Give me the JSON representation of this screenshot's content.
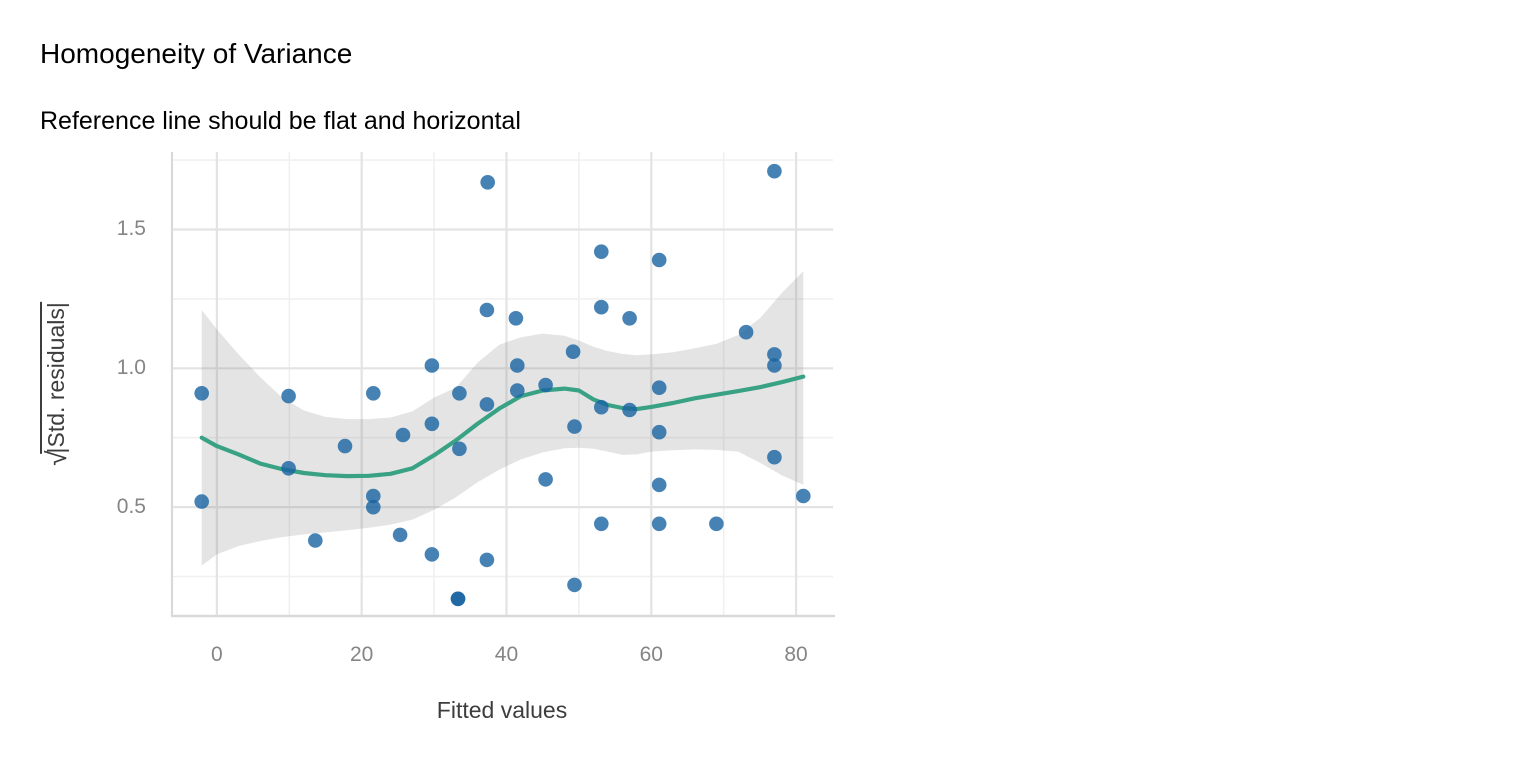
{
  "chart_data": {
    "type": "scatter",
    "title": "Homogeneity of Variance",
    "subtitle": "Reference line should be flat and horizontal",
    "xlabel": "Fitted values",
    "ylabel": "sqrt(|Std. residuals|)",
    "ylabel_sqrt": "√",
    "ylabel_inner": "|Std. residuals|",
    "xlim": [
      -6.2,
      85.1
    ],
    "ylim": [
      0.108,
      1.779
    ],
    "grid": true,
    "legend": false,
    "x_ticks": [
      {
        "v": 0,
        "label": "0"
      },
      {
        "v": 20,
        "label": "20"
      },
      {
        "v": 40,
        "label": "40"
      },
      {
        "v": 60,
        "label": "60"
      },
      {
        "v": 80,
        "label": "80"
      }
    ],
    "x_minor_ticks": [
      10,
      30,
      50,
      70
    ],
    "y_ticks": [
      {
        "v": 0.5,
        "label": "0.5"
      },
      {
        "v": 1.0,
        "label": "1.0"
      },
      {
        "v": 1.5,
        "label": "1.5"
      }
    ],
    "y_minor_ticks": [
      0.25,
      0.75,
      1.25,
      1.75
    ],
    "points": [
      [
        -2.1,
        0.91
      ],
      [
        -2.1,
        0.52
      ],
      [
        9.9,
        0.9
      ],
      [
        9.9,
        0.64
      ],
      [
        13.6,
        0.38
      ],
      [
        17.7,
        0.72
      ],
      [
        21.6,
        0.91
      ],
      [
        21.6,
        0.54
      ],
      [
        21.6,
        0.5
      ],
      [
        25.7,
        0.76
      ],
      [
        25.3,
        0.4
      ],
      [
        29.7,
        1.01
      ],
      [
        29.7,
        0.8
      ],
      [
        29.7,
        0.33
      ],
      [
        33.5,
        0.91
      ],
      [
        33.5,
        0.71
      ],
      [
        37.4,
        1.67
      ],
      [
        37.3,
        1.21
      ],
      [
        37.3,
        0.87
      ],
      [
        37.3,
        0.31
      ],
      [
        41.3,
        1.18
      ],
      [
        41.5,
        1.01
      ],
      [
        41.5,
        0.92
      ],
      [
        45.4,
        0.94
      ],
      [
        45.4,
        0.6
      ],
      [
        49.2,
        1.06
      ],
      [
        49.4,
        0.79
      ],
      [
        49.4,
        0.22
      ],
      [
        53.1,
        1.42
      ],
      [
        53.1,
        1.22
      ],
      [
        53.1,
        0.86
      ],
      [
        53.1,
        0.44
      ],
      [
        57.0,
        1.18
      ],
      [
        57.0,
        0.85
      ],
      [
        61.1,
        1.39
      ],
      [
        61.1,
        0.93
      ],
      [
        61.1,
        0.77
      ],
      [
        61.1,
        0.58
      ],
      [
        61.1,
        0.44
      ],
      [
        69.0,
        0.44
      ],
      [
        73.1,
        1.13
      ],
      [
        77.0,
        1.71
      ],
      [
        77.0,
        1.05
      ],
      [
        77.0,
        1.01
      ],
      [
        77.0,
        0.68
      ],
      [
        81.0,
        0.54
      ]
    ],
    "overplotted_point": {
      "x": 33.3,
      "y": 0.17,
      "count": 2
    },
    "smooth_line": [
      [
        -2.1,
        0.75
      ],
      [
        0,
        0.72
      ],
      [
        3,
        0.69
      ],
      [
        6,
        0.657
      ],
      [
        9,
        0.637
      ],
      [
        12,
        0.623
      ],
      [
        15,
        0.615
      ],
      [
        18,
        0.612
      ],
      [
        21,
        0.613
      ],
      [
        24,
        0.62
      ],
      [
        27,
        0.64
      ],
      [
        30,
        0.687
      ],
      [
        33,
        0.74
      ],
      [
        36,
        0.8
      ],
      [
        39,
        0.855
      ],
      [
        42,
        0.9
      ],
      [
        45,
        0.92
      ],
      [
        48,
        0.927
      ],
      [
        50,
        0.92
      ],
      [
        52,
        0.888
      ],
      [
        54,
        0.868
      ],
      [
        56,
        0.857
      ],
      [
        58,
        0.853
      ],
      [
        60,
        0.861
      ],
      [
        63,
        0.875
      ],
      [
        66,
        0.892
      ],
      [
        69,
        0.905
      ],
      [
        72,
        0.918
      ],
      [
        75,
        0.932
      ],
      [
        78,
        0.95
      ],
      [
        81,
        0.97
      ]
    ],
    "ribbon_upper": [
      [
        -2.1,
        1.21
      ],
      [
        0,
        1.14
      ],
      [
        3,
        1.05
      ],
      [
        6,
        0.968
      ],
      [
        9,
        0.895
      ],
      [
        12,
        0.848
      ],
      [
        15,
        0.825
      ],
      [
        18,
        0.817
      ],
      [
        21,
        0.817
      ],
      [
        24,
        0.823
      ],
      [
        27,
        0.845
      ],
      [
        30,
        0.895
      ],
      [
        33,
        0.93
      ],
      [
        36,
        1.02
      ],
      [
        39,
        1.085
      ],
      [
        42,
        1.112
      ],
      [
        45,
        1.125
      ],
      [
        48,
        1.117
      ],
      [
        50,
        1.1
      ],
      [
        52,
        1.078
      ],
      [
        54,
        1.062
      ],
      [
        56,
        1.052
      ],
      [
        58,
        1.047
      ],
      [
        60,
        1.05
      ],
      [
        63,
        1.058
      ],
      [
        66,
        1.072
      ],
      [
        69,
        1.088
      ],
      [
        72,
        1.12
      ],
      [
        75,
        1.18
      ],
      [
        78,
        1.27
      ],
      [
        81,
        1.35
      ]
    ],
    "ribbon_lower": [
      [
        -2.1,
        0.29
      ],
      [
        0,
        0.33
      ],
      [
        3,
        0.36
      ],
      [
        6,
        0.378
      ],
      [
        9,
        0.392
      ],
      [
        12,
        0.402
      ],
      [
        15,
        0.409
      ],
      [
        18,
        0.417
      ],
      [
        21,
        0.426
      ],
      [
        24,
        0.437
      ],
      [
        27,
        0.455
      ],
      [
        30,
        0.49
      ],
      [
        33,
        0.535
      ],
      [
        36,
        0.59
      ],
      [
        39,
        0.635
      ],
      [
        42,
        0.672
      ],
      [
        45,
        0.697
      ],
      [
        48,
        0.712
      ],
      [
        50,
        0.714
      ],
      [
        52,
        0.71
      ],
      [
        54,
        0.7
      ],
      [
        56,
        0.688
      ],
      [
        58,
        0.69
      ],
      [
        60,
        0.7
      ],
      [
        63,
        0.705
      ],
      [
        66,
        0.708
      ],
      [
        69,
        0.706
      ],
      [
        72,
        0.7
      ],
      [
        75,
        0.66
      ],
      [
        78,
        0.615
      ],
      [
        81,
        0.581
      ]
    ],
    "colors": {
      "point": "#1863a1",
      "point_opacity": 0.8,
      "smooth_line": "#39a285",
      "ribbon": "rgba(130,130,130,0.22)",
      "grid_major": "#e3e3e3",
      "grid_minor": "#f0f0f0",
      "axis_line": "#d9d9d9",
      "tick_label": "#858585",
      "axis_title": "#3d3d3d",
      "title": "#000000"
    }
  }
}
